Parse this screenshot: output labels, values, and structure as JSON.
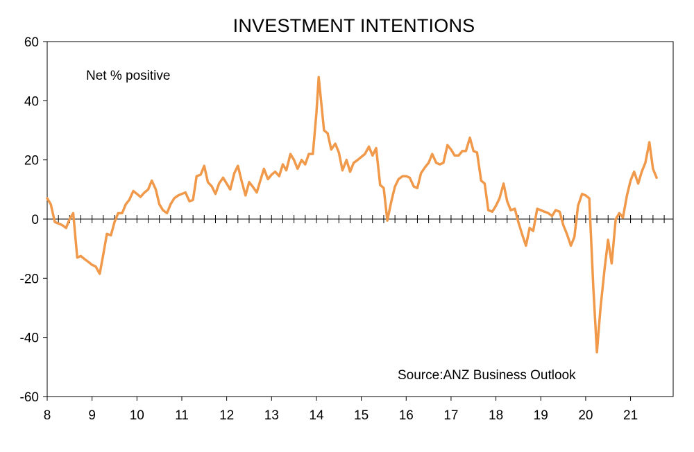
{
  "chart_data": {
    "type": "line",
    "title": "INVESTMENT INTENTIONS",
    "ylabel": "Net % positive",
    "source": "Source:ANZ Business Outlook",
    "ylim": [
      -60,
      60
    ],
    "yticks": [
      60,
      40,
      20,
      0,
      -20,
      -40,
      -60
    ],
    "yticklabels": [
      "60",
      "40",
      "20",
      "0",
      "-20",
      "-40",
      "-60"
    ],
    "xlim": [
      2008,
      2021.95
    ],
    "xticks": [
      2008,
      2009,
      2010,
      2011,
      2012,
      2013,
      2014,
      2015,
      2016,
      2017,
      2018,
      2019,
      2020,
      2021
    ],
    "xticklabels": [
      "8",
      "9",
      "10",
      "11",
      "12",
      "13",
      "14",
      "15",
      "16",
      "17",
      "18",
      "19",
      "20",
      "21"
    ],
    "line_color": "#F0994A",
    "axis_color": "#000000",
    "series": [
      {
        "name": "",
        "points": [
          [
            2008.0,
            7
          ],
          [
            2008.08,
            5
          ],
          [
            2008.17,
            -1
          ],
          [
            2008.25,
            -1.5
          ],
          [
            2008.33,
            -2
          ],
          [
            2008.42,
            -3
          ],
          [
            2008.5,
            0
          ],
          [
            2008.58,
            2
          ],
          [
            2008.67,
            -13
          ],
          [
            2008.75,
            -12.5
          ],
          [
            2008.83,
            -13.5
          ],
          [
            2008.92,
            -14.5
          ],
          [
            2009.0,
            -15.5
          ],
          [
            2009.08,
            -16
          ],
          [
            2009.17,
            -18.5
          ],
          [
            2009.25,
            -12
          ],
          [
            2009.33,
            -5
          ],
          [
            2009.42,
            -5.5
          ],
          [
            2009.5,
            -1
          ],
          [
            2009.58,
            2
          ],
          [
            2009.67,
            2
          ],
          [
            2009.75,
            5
          ],
          [
            2009.83,
            6.5
          ],
          [
            2009.92,
            9.5
          ],
          [
            2010.0,
            8.5
          ],
          [
            2010.08,
            7.5
          ],
          [
            2010.17,
            9
          ],
          [
            2010.25,
            10
          ],
          [
            2010.33,
            13
          ],
          [
            2010.42,
            10
          ],
          [
            2010.5,
            5
          ],
          [
            2010.58,
            3
          ],
          [
            2010.67,
            2
          ],
          [
            2010.75,
            5
          ],
          [
            2010.83,
            7
          ],
          [
            2010.92,
            8
          ],
          [
            2011.0,
            8.5
          ],
          [
            2011.08,
            9
          ],
          [
            2011.17,
            6
          ],
          [
            2011.25,
            6.5
          ],
          [
            2011.33,
            14.5
          ],
          [
            2011.42,
            15
          ],
          [
            2011.5,
            18
          ],
          [
            2011.58,
            12.5
          ],
          [
            2011.67,
            11
          ],
          [
            2011.75,
            8.5
          ],
          [
            2011.83,
            12
          ],
          [
            2011.92,
            14
          ],
          [
            2012.0,
            12
          ],
          [
            2012.08,
            10
          ],
          [
            2012.17,
            15.5
          ],
          [
            2012.25,
            18
          ],
          [
            2012.33,
            13
          ],
          [
            2012.42,
            8
          ],
          [
            2012.5,
            12.5
          ],
          [
            2012.58,
            11
          ],
          [
            2012.67,
            9
          ],
          [
            2012.75,
            13
          ],
          [
            2012.83,
            17
          ],
          [
            2012.92,
            13.5
          ],
          [
            2013.0,
            15
          ],
          [
            2013.08,
            16
          ],
          [
            2013.17,
            14.5
          ],
          [
            2013.25,
            18.5
          ],
          [
            2013.33,
            16.5
          ],
          [
            2013.42,
            22
          ],
          [
            2013.5,
            20
          ],
          [
            2013.58,
            17
          ],
          [
            2013.67,
            20
          ],
          [
            2013.75,
            18.5
          ],
          [
            2013.83,
            22
          ],
          [
            2013.92,
            22
          ],
          [
            2014.0,
            36
          ],
          [
            2014.05,
            48
          ],
          [
            2014.17,
            30
          ],
          [
            2014.25,
            29
          ],
          [
            2014.33,
            23.5
          ],
          [
            2014.42,
            25.5
          ],
          [
            2014.5,
            22.5
          ],
          [
            2014.58,
            16.5
          ],
          [
            2014.67,
            20
          ],
          [
            2014.75,
            16
          ],
          [
            2014.83,
            19
          ],
          [
            2014.92,
            20
          ],
          [
            2015.0,
            21
          ],
          [
            2015.08,
            22
          ],
          [
            2015.17,
            24.5
          ],
          [
            2015.25,
            21.5
          ],
          [
            2015.33,
            24
          ],
          [
            2015.42,
            11.5
          ],
          [
            2015.5,
            10.5
          ],
          [
            2015.58,
            -0.5
          ],
          [
            2015.67,
            6
          ],
          [
            2015.75,
            11
          ],
          [
            2015.83,
            13.5
          ],
          [
            2015.92,
            14.5
          ],
          [
            2016.0,
            14.5
          ],
          [
            2016.08,
            14
          ],
          [
            2016.17,
            11
          ],
          [
            2016.25,
            10.5
          ],
          [
            2016.33,
            15.5
          ],
          [
            2016.42,
            17.5
          ],
          [
            2016.5,
            19
          ],
          [
            2016.58,
            22
          ],
          [
            2016.67,
            19
          ],
          [
            2016.75,
            18.5
          ],
          [
            2016.83,
            19
          ],
          [
            2016.92,
            25
          ],
          [
            2017.0,
            23.5
          ],
          [
            2017.08,
            21.5
          ],
          [
            2017.17,
            21.5
          ],
          [
            2017.25,
            23
          ],
          [
            2017.33,
            23
          ],
          [
            2017.42,
            27.5
          ],
          [
            2017.5,
            23
          ],
          [
            2017.58,
            22.5
          ],
          [
            2017.67,
            13
          ],
          [
            2017.75,
            12
          ],
          [
            2017.83,
            3
          ],
          [
            2017.92,
            2.5
          ],
          [
            2018.0,
            4.5
          ],
          [
            2018.08,
            7
          ],
          [
            2018.17,
            12
          ],
          [
            2018.25,
            6
          ],
          [
            2018.33,
            3
          ],
          [
            2018.42,
            3.5
          ],
          [
            2018.5,
            -1
          ],
          [
            2018.58,
            -5
          ],
          [
            2018.67,
            -9
          ],
          [
            2018.75,
            -3
          ],
          [
            2018.83,
            -4
          ],
          [
            2018.92,
            3.5
          ],
          [
            2019.0,
            3
          ],
          [
            2019.08,
            2.5
          ],
          [
            2019.17,
            2
          ],
          [
            2019.25,
            1
          ],
          [
            2019.33,
            3
          ],
          [
            2019.42,
            2.5
          ],
          [
            2019.5,
            -2
          ],
          [
            2019.58,
            -5
          ],
          [
            2019.67,
            -9
          ],
          [
            2019.75,
            -6
          ],
          [
            2019.83,
            4.5
          ],
          [
            2019.92,
            8.5
          ],
          [
            2020.0,
            8
          ],
          [
            2020.08,
            7
          ],
          [
            2020.17,
            -23
          ],
          [
            2020.25,
            -45
          ],
          [
            2020.33,
            -30
          ],
          [
            2020.42,
            -17
          ],
          [
            2020.5,
            -7
          ],
          [
            2020.58,
            -15
          ],
          [
            2020.67,
            0
          ],
          [
            2020.75,
            2
          ],
          [
            2020.83,
            0.5
          ],
          [
            2020.92,
            8
          ],
          [
            2021.0,
            13
          ],
          [
            2021.08,
            16
          ],
          [
            2021.17,
            12
          ],
          [
            2021.25,
            16
          ],
          [
            2021.33,
            19
          ],
          [
            2021.42,
            26
          ],
          [
            2021.5,
            17
          ],
          [
            2021.58,
            14
          ]
        ]
      }
    ]
  }
}
